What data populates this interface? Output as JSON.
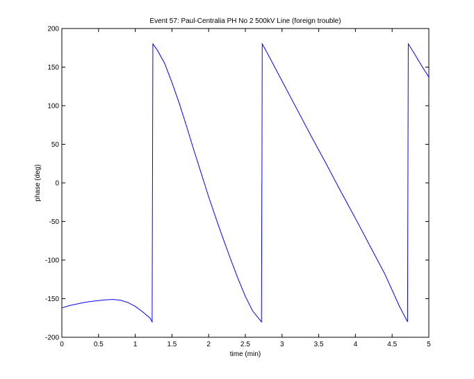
{
  "chart_data": {
    "type": "line",
    "title": "Event 57: Paul-Centralia PH No 2 500kV Line (foreign trouble)",
    "xlabel": "time (min)",
    "ylabel": "phase (deg)",
    "xlim": [
      0,
      5
    ],
    "ylim": [
      -200,
      200
    ],
    "x_ticks": [
      0,
      0.5,
      1,
      1.5,
      2,
      2.5,
      3,
      3.5,
      4,
      4.5,
      5
    ],
    "x_tick_labels": [
      "0",
      "0.5",
      "1",
      "1.5",
      "2",
      "2.5",
      "3",
      "3.5",
      "4",
      "4.5",
      "5"
    ],
    "y_ticks": [
      -200,
      -150,
      -100,
      -50,
      0,
      50,
      100,
      150,
      200
    ],
    "y_tick_labels": [
      "-200",
      "-150",
      "-100",
      "-50",
      "0",
      "50",
      "100",
      "150",
      "200"
    ],
    "grid": false,
    "line_color": "#0000ff",
    "series": [
      {
        "x": [
          0,
          0.1,
          0.2,
          0.3,
          0.4,
          0.5,
          0.6,
          0.7,
          0.8,
          0.9,
          1.0,
          1.1,
          1.2,
          1.23,
          1.24,
          1.3,
          1.4,
          1.5,
          1.6,
          1.7,
          1.8,
          1.9,
          2.0,
          2.1,
          2.2,
          2.3,
          2.4,
          2.5,
          2.6,
          2.72,
          2.725,
          2.726,
          2.73,
          2.8,
          3.0,
          3.2,
          3.4,
          3.6,
          3.8,
          4.0,
          4.2,
          4.4,
          4.6,
          4.71,
          4.72,
          4.8,
          4.9,
          5.0
        ],
        "y": [
          -162,
          -159,
          -157,
          -155,
          -153.5,
          -152.5,
          -151.5,
          -151,
          -152,
          -155,
          -160,
          -167,
          -175,
          -180,
          180,
          172,
          155,
          130,
          103,
          73,
          42,
          12,
          -18,
          -46,
          -73,
          -99,
          -124,
          -147,
          -166,
          -180,
          0,
          0,
          180,
          168,
          132,
          96,
          60,
          25,
          -11,
          -46,
          -82,
          -118,
          -160,
          -180,
          180,
          168,
          152,
          137
        ]
      }
    ]
  }
}
